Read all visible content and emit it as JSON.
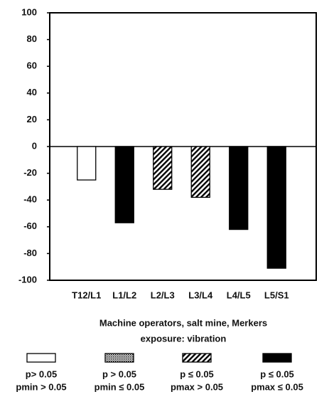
{
  "chart_data": {
    "type": "bar",
    "categories": [
      "T12/L1",
      "L1/L2",
      "L2/L3",
      "L3/L4",
      "L4/L5",
      "L5/S1"
    ],
    "values": [
      -25,
      -57,
      -32,
      -38,
      -62,
      -91
    ],
    "patterns": [
      "white",
      "solid",
      "hatched",
      "hatched",
      "solid",
      "solid"
    ],
    "ylim": [
      -100,
      100
    ],
    "yticks": [
      100,
      80,
      60,
      40,
      20,
      0,
      -20,
      -40,
      -60,
      -80,
      -100
    ],
    "xlabel": [
      "Machine operators, salt mine, Merkers",
      "exposure:  vibration"
    ],
    "legend": [
      {
        "pattern": "white",
        "label": [
          "p> 0.05",
          "pmin > 0.05"
        ]
      },
      {
        "pattern": "dotted",
        "label": [
          "p > 0.05",
          "pmin ≤ 0.05"
        ]
      },
      {
        "pattern": "hatched",
        "label": [
          "p ≤ 0.05",
          "pmax > 0.05"
        ]
      },
      {
        "pattern": "solid",
        "label": [
          "p ≤ 0.05",
          "pmax ≤ 0.05"
        ]
      }
    ]
  }
}
